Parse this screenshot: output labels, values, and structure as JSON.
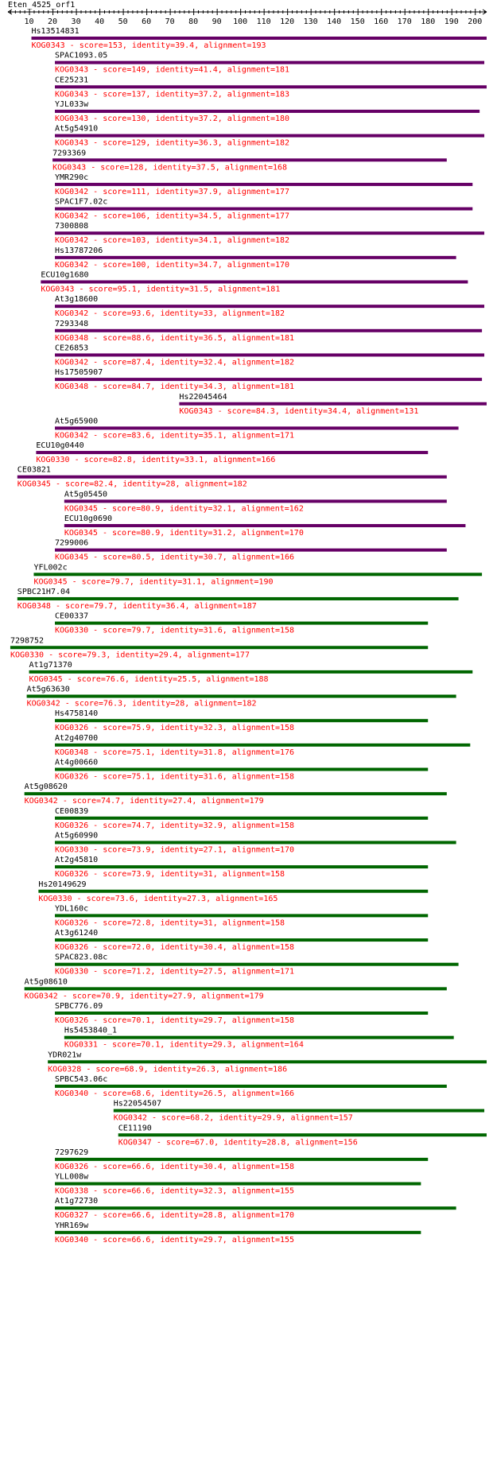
{
  "query_name": "Eten_4525_orf1",
  "ruler": {
    "ticks": [
      "10",
      "20",
      "30",
      "40",
      "50",
      "60",
      "70",
      "80",
      "90",
      "100",
      "110",
      "120",
      "130",
      "140",
      "150",
      "160",
      "170",
      "180",
      "190",
      "200"
    ]
  },
  "colors": {
    "purple": "#660066",
    "green": "#006600",
    "label": "#ff0000",
    "text": "#000000"
  },
  "hits": [
    {
      "name": "Hs13514831",
      "start": 11,
      "end": 205,
      "color": "purple",
      "description": "KOG0343 - score=153, identity=39.4, alignment=193"
    },
    {
      "name": "SPAC1093.05",
      "start": 21,
      "end": 204,
      "color": "purple",
      "description": "KOG0343 - score=149, identity=41.4, alignment=181"
    },
    {
      "name": "CE25231",
      "start": 21,
      "end": 205,
      "color": "purple",
      "description": "KOG0343 - score=137, identity=37.2, alignment=183"
    },
    {
      "name": "YJL033w",
      "start": 21,
      "end": 202,
      "color": "purple",
      "description": "KOG0343 - score=130, identity=37.2, alignment=180"
    },
    {
      "name": "At5g54910",
      "start": 21,
      "end": 204,
      "color": "purple",
      "description": "KOG0343 - score=129, identity=36.3, alignment=182"
    },
    {
      "name": "7293369",
      "start": 20,
      "end": 188,
      "color": "purple",
      "description": "KOG0343 - score=128, identity=37.5, alignment=168"
    },
    {
      "name": "YMR290c",
      "start": 21,
      "end": 199,
      "color": "purple",
      "description": "KOG0342 - score=111, identity=37.9, alignment=177"
    },
    {
      "name": "SPAC1F7.02c",
      "start": 21,
      "end": 199,
      "color": "purple",
      "description": "KOG0342 - score=106, identity=34.5, alignment=177"
    },
    {
      "name": "7300808",
      "start": 21,
      "end": 204,
      "color": "purple",
      "description": "KOG0342 - score=103, identity=34.1, alignment=182"
    },
    {
      "name": "Hs13787206",
      "start": 21,
      "end": 192,
      "color": "purple",
      "description": "KOG0342 - score=100, identity=34.7, alignment=170"
    },
    {
      "name": "ECU10g1680",
      "start": 15,
      "end": 197,
      "color": "purple",
      "description": "KOG0343 - score=95.1, identity=31.5, alignment=181"
    },
    {
      "name": "At3g18600",
      "start": 21,
      "end": 204,
      "color": "purple",
      "description": "KOG0342 - score=93.6, identity=33, alignment=182"
    },
    {
      "name": "7293348",
      "start": 21,
      "end": 203,
      "color": "purple",
      "description": "KOG0348 - score=88.6, identity=36.5, alignment=181"
    },
    {
      "name": "CE26853",
      "start": 21,
      "end": 204,
      "color": "purple",
      "description": "KOG0342 - score=87.4, identity=32.4, alignment=182"
    },
    {
      "name": "Hs17505907",
      "start": 21,
      "end": 203,
      "color": "purple",
      "description": "KOG0348 - score=84.7, identity=34.3, alignment=181"
    },
    {
      "name": "Hs22045464",
      "start": 74,
      "end": 205,
      "color": "purple",
      "description": "KOG0343 - score=84.3, identity=34.4, alignment=131"
    },
    {
      "name": "At5g65900",
      "start": 21,
      "end": 193,
      "color": "purple",
      "description": "KOG0342 - score=83.6, identity=35.1, alignment=171"
    },
    {
      "name": "ECU10g0440",
      "start": 13,
      "end": 180,
      "color": "purple",
      "description": "KOG0330 - score=82.8, identity=33.1, alignment=166"
    },
    {
      "name": "CE03821",
      "start": 5,
      "end": 188,
      "color": "purple",
      "description": "KOG0345 - score=82.4, identity=28, alignment=182"
    },
    {
      "name": "At5g05450",
      "start": 25,
      "end": 188,
      "color": "purple",
      "description": "KOG0345 - score=80.9, identity=32.1, alignment=162"
    },
    {
      "name": "ECU10g0690",
      "start": 25,
      "end": 196,
      "color": "purple",
      "description": "KOG0345 - score=80.9, identity=31.2, alignment=170"
    },
    {
      "name": "7299006",
      "start": 21,
      "end": 188,
      "color": "purple",
      "description": "KOG0345 - score=80.5, identity=30.7, alignment=166"
    },
    {
      "name": "YFL002c",
      "start": 12,
      "end": 203,
      "color": "green",
      "description": "KOG0345 - score=79.7, identity=31.1, alignment=190"
    },
    {
      "name": "SPBC21H7.04",
      "start": 5,
      "end": 193,
      "color": "green",
      "description": "KOG0348 - score=79.7, identity=36.4, alignment=187"
    },
    {
      "name": "CE00337",
      "start": 21,
      "end": 180,
      "color": "green",
      "description": "KOG0330 - score=79.7, identity=31.6, alignment=158"
    },
    {
      "name": "7298752",
      "start": 2,
      "end": 180,
      "color": "green",
      "description": "KOG0330 - score=79.3, identity=29.4, alignment=177"
    },
    {
      "name": "At1g71370",
      "start": 10,
      "end": 199,
      "color": "green",
      "description": "KOG0345 - score=76.6, identity=25.5, alignment=188"
    },
    {
      "name": "At5g63630",
      "start": 9,
      "end": 192,
      "color": "green",
      "description": "KOG0342 - score=76.3, identity=28, alignment=182"
    },
    {
      "name": "Hs4758140",
      "start": 21,
      "end": 180,
      "color": "green",
      "description": "KOG0326 - score=75.9, identity=32.3, alignment=158"
    },
    {
      "name": "At2g40700",
      "start": 21,
      "end": 198,
      "color": "green",
      "description": "KOG0348 - score=75.1, identity=31.8, alignment=176"
    },
    {
      "name": "At4g00660",
      "start": 21,
      "end": 180,
      "color": "green",
      "description": "KOG0326 - score=75.1, identity=31.6, alignment=158"
    },
    {
      "name": "At5g08620",
      "start": 8,
      "end": 188,
      "color": "green",
      "description": "KOG0342 - score=74.7, identity=27.4, alignment=179"
    },
    {
      "name": "CE00839",
      "start": 21,
      "end": 180,
      "color": "green",
      "description": "KOG0326 - score=74.7, identity=32.9, alignment=158"
    },
    {
      "name": "At5g60990",
      "start": 21,
      "end": 192,
      "color": "green",
      "description": "KOG0330 - score=73.9, identity=27.1, alignment=170"
    },
    {
      "name": "At2g45810",
      "start": 21,
      "end": 180,
      "color": "green",
      "description": "KOG0326 - score=73.9, identity=31, alignment=158"
    },
    {
      "name": "Hs20149629",
      "start": 14,
      "end": 180,
      "color": "green",
      "description": "KOG0330 - score=73.6, identity=27.3, alignment=165"
    },
    {
      "name": "YDL160c",
      "start": 21,
      "end": 180,
      "color": "green",
      "description": "KOG0326 - score=72.8, identity=31, alignment=158"
    },
    {
      "name": "At3g61240",
      "start": 21,
      "end": 180,
      "color": "green",
      "description": "KOG0326 - score=72.0, identity=30.4, alignment=158"
    },
    {
      "name": "SPAC823.08c",
      "start": 21,
      "end": 193,
      "color": "green",
      "description": "KOG0330 - score=71.2, identity=27.5, alignment=171"
    },
    {
      "name": "At5g08610",
      "start": 8,
      "end": 188,
      "color": "green",
      "description": "KOG0342 - score=70.9, identity=27.9, alignment=179"
    },
    {
      "name": "SPBC776.09",
      "start": 21,
      "end": 180,
      "color": "green",
      "description": "KOG0326 - score=70.1, identity=29.7, alignment=158"
    },
    {
      "name": "Hs5453840_1",
      "start": 25,
      "end": 191,
      "color": "green",
      "description": "KOG0331 - score=70.1, identity=29.3, alignment=164"
    },
    {
      "name": "YDR021w",
      "start": 18,
      "end": 205,
      "color": "green",
      "description": "KOG0328 - score=68.9, identity=26.3, alignment=186"
    },
    {
      "name": "SPBC543.06c",
      "start": 21,
      "end": 188,
      "color": "green",
      "description": "KOG0340 - score=68.6, identity=26.5, alignment=166"
    },
    {
      "name": "Hs22054507",
      "start": 46,
      "end": 204,
      "color": "green",
      "description": "KOG0342 - score=68.2, identity=29.9, alignment=157"
    },
    {
      "name": "CE11190",
      "start": 48,
      "end": 205,
      "color": "green",
      "description": "KOG0347 - score=67.0, identity=28.8, alignment=156"
    },
    {
      "name": "7297629",
      "start": 21,
      "end": 180,
      "color": "green",
      "description": "KOG0326 - score=66.6, identity=30.4, alignment=158"
    },
    {
      "name": "YLL008w",
      "start": 21,
      "end": 177,
      "color": "green",
      "description": "KOG0338 - score=66.6, identity=32.3, alignment=155"
    },
    {
      "name": "At1g72730",
      "start": 21,
      "end": 192,
      "color": "green",
      "description": "KOG0327 - score=66.6, identity=28.8, alignment=170"
    },
    {
      "name": "YHR169w",
      "start": 21,
      "end": 177,
      "color": "green",
      "description": "KOG0340 - score=66.6, identity=29.7, alignment=155"
    }
  ]
}
